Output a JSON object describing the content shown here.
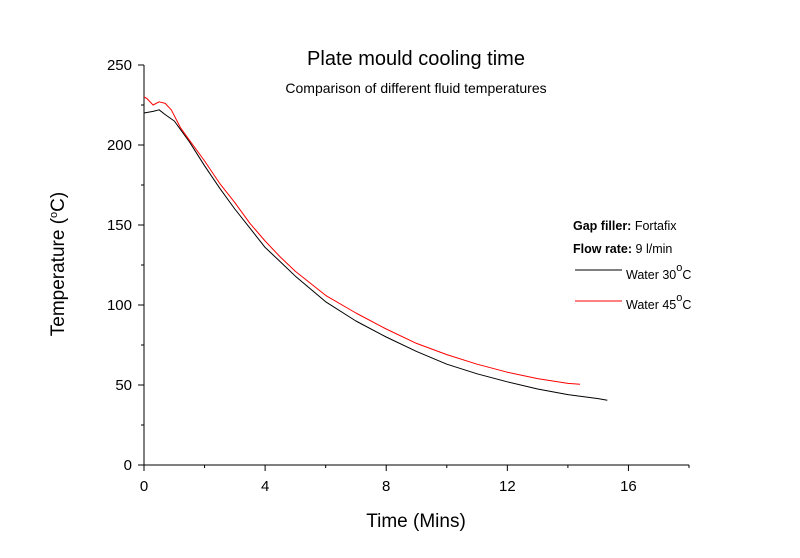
{
  "chart_data": {
    "type": "line",
    "title": "Plate mould cooling time",
    "subtitle": "Comparison of different fluid temperatures",
    "xlabel": "Time (Mins)",
    "ylabel_main": "Temperature (",
    "ylabel_sup": "o",
    "ylabel_end": "C)",
    "xlim": [
      0,
      18
    ],
    "ylim": [
      0,
      250
    ],
    "x_ticks": [
      0,
      4,
      8,
      12,
      16
    ],
    "x_minor_ticks": [
      2,
      6,
      10,
      14,
      18
    ],
    "y_ticks": [
      0,
      50,
      100,
      150,
      200,
      250
    ],
    "y_minor_ticks": [
      25,
      75,
      125,
      175,
      225
    ],
    "grid": false,
    "legend_position": "right",
    "legend_notes": [
      {
        "key": "Gap filler:",
        "value": " Fortafix"
      },
      {
        "key": "Flow rate:",
        "value": " 9 l/min"
      }
    ],
    "series": [
      {
        "name_main": "Water 30",
        "name_sup": "o",
        "name_end": "C",
        "color": "#000000",
        "points": [
          [
            0,
            220
          ],
          [
            0.3,
            221
          ],
          [
            0.5,
            222
          ],
          [
            0.7,
            219
          ],
          [
            1.0,
            215
          ],
          [
            1.5,
            202
          ],
          [
            2.0,
            187
          ],
          [
            2.5,
            173
          ],
          [
            3.0,
            160
          ],
          [
            3.5,
            148
          ],
          [
            4.0,
            136
          ],
          [
            4.5,
            127
          ],
          [
            5.0,
            118
          ],
          [
            6.0,
            102
          ],
          [
            7.0,
            90
          ],
          [
            8.0,
            80
          ],
          [
            9.0,
            71
          ],
          [
            10.0,
            63
          ],
          [
            11.0,
            57
          ],
          [
            12.0,
            52
          ],
          [
            13.0,
            47.5
          ],
          [
            14.0,
            44
          ],
          [
            15.0,
            41.5
          ],
          [
            15.3,
            40.5
          ]
        ]
      },
      {
        "name_main": "Water 45",
        "name_sup": "o",
        "name_end": "C",
        "color": "#ff0000",
        "points": [
          [
            0,
            230
          ],
          [
            0.1,
            229
          ],
          [
            0.3,
            225
          ],
          [
            0.5,
            227
          ],
          [
            0.7,
            226
          ],
          [
            0.9,
            222
          ],
          [
            1.2,
            211
          ],
          [
            1.5,
            203
          ],
          [
            2.0,
            190
          ],
          [
            2.5,
            176
          ],
          [
            3.0,
            164
          ],
          [
            3.5,
            151
          ],
          [
            4.0,
            140
          ],
          [
            4.5,
            130
          ],
          [
            5.0,
            121
          ],
          [
            6.0,
            106
          ],
          [
            7.0,
            95
          ],
          [
            8.0,
            85
          ],
          [
            9.0,
            76
          ],
          [
            10.0,
            69
          ],
          [
            11.0,
            63
          ],
          [
            12.0,
            58
          ],
          [
            13.0,
            54
          ],
          [
            14.0,
            51
          ],
          [
            14.4,
            50.5
          ]
        ]
      }
    ]
  }
}
